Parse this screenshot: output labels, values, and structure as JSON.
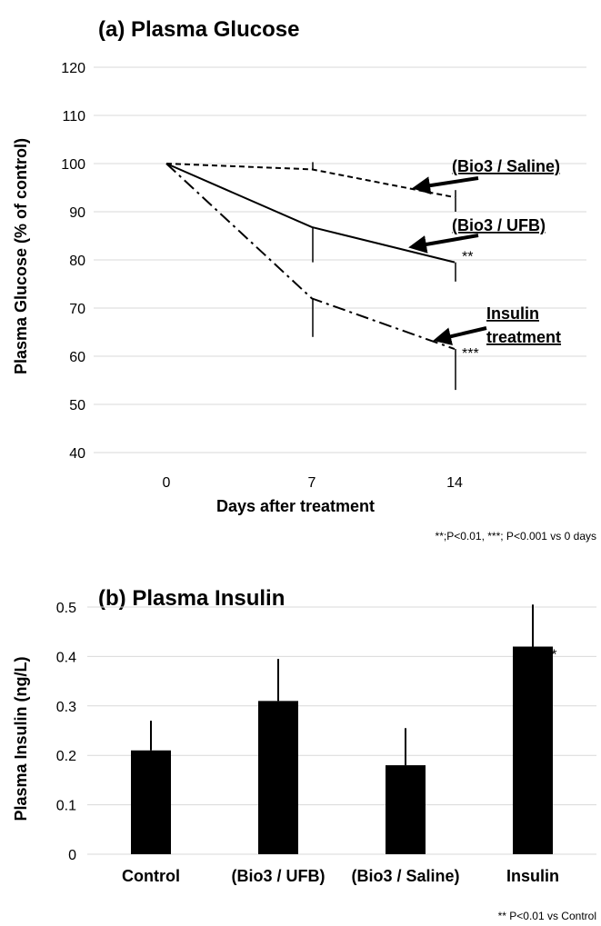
{
  "chart_data": [
    {
      "type": "line",
      "title": "(a) Plasma Glucose",
      "xlabel": "Days after treatment",
      "ylabel": "Plasma Glucose (% of control)",
      "x": [
        0,
        7,
        14
      ],
      "x_tick_labels": [
        "0",
        "7",
        "14"
      ],
      "ylim": [
        40,
        120
      ],
      "y_ticks": [
        40,
        50,
        60,
        70,
        80,
        90,
        100,
        110,
        120
      ],
      "grid": true,
      "series": [
        {
          "name": "(Bio3 / Saline)",
          "style": "dashed",
          "values": [
            100,
            98.8,
            93
          ],
          "error_plus": [
            0,
            1.5,
            1.5
          ],
          "error_minus": [
            0,
            0,
            3
          ],
          "significance": [
            "",
            "",
            ""
          ]
        },
        {
          "name": "(Bio3 / UFB)",
          "style": "solid",
          "values": [
            100,
            86.8,
            79.5
          ],
          "error_plus": [
            0,
            0,
            0
          ],
          "error_minus": [
            0,
            7.3,
            4
          ],
          "significance": [
            "",
            "",
            "**"
          ]
        },
        {
          "name": "Insulin treatment",
          "style": "dash-dot",
          "values": [
            100,
            72,
            61.5
          ],
          "error_plus": [
            0,
            0,
            0
          ],
          "error_minus": [
            0,
            8,
            8.5
          ],
          "significance": [
            "",
            "",
            "***"
          ]
        }
      ],
      "callouts": [
        {
          "series": 0,
          "lines": [
            "(Bio3 / Saline)"
          ]
        },
        {
          "series": 1,
          "lines": [
            "(Bio3 / UFB)"
          ]
        },
        {
          "series": 2,
          "lines": [
            "Insulin",
            "treatment"
          ]
        }
      ],
      "footnote": "**;P<0.01, ***; P<0.001 vs 0 days"
    },
    {
      "type": "bar",
      "title": "(b) Plasma Insulin",
      "xlabel": "",
      "ylabel": "Plasma Insulin (ng/L)",
      "categories": [
        "Control",
        "(Bio3 / UFB)",
        "(Bio3 / Saline)",
        "Insulin"
      ],
      "values": [
        0.21,
        0.31,
        0.18,
        0.42
      ],
      "error_plus": [
        0.06,
        0.085,
        0.075,
        0.085
      ],
      "significance": [
        "",
        "",
        "",
        "**"
      ],
      "ylim": [
        0,
        0.5
      ],
      "y_ticks": [
        "0",
        "0.1",
        "0.2",
        "0.3",
        "0.4",
        "0.5"
      ],
      "grid": true,
      "colors": {
        "bar": "#000000",
        "grid": "#d9d9d9"
      },
      "footnote": "** P<0.01 vs Control"
    }
  ]
}
